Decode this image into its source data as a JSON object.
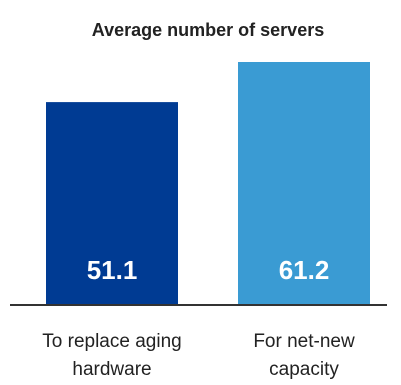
{
  "chart_data": {
    "type": "bar",
    "title": "Average number of servers",
    "categories": [
      "To replace aging hardware",
      "For net-new capacity"
    ],
    "category_lines": [
      [
        "To replace aging",
        "hardware"
      ],
      [
        "For net-new",
        "capacity"
      ]
    ],
    "values": [
      51.1,
      61.2
    ],
    "value_labels": [
      "51.1",
      "61.2"
    ],
    "colors": [
      "#003B93",
      "#3A9BD3"
    ],
    "xlabel": "",
    "ylabel": "",
    "ylim": [
      0,
      61.2
    ],
    "grid": false,
    "legend": "none"
  }
}
